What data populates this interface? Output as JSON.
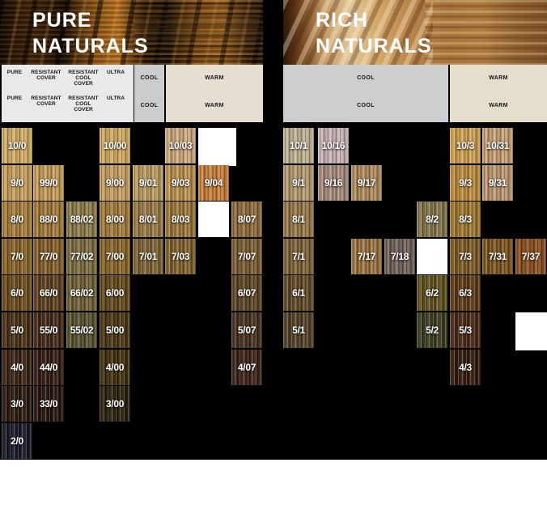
{
  "page": {
    "background": "#000000",
    "bottom_background": "#ffffff"
  },
  "sections": [
    {
      "name": "pure-naturals",
      "title": [
        "PURE",
        "NATURALS"
      ],
      "column_headers": [
        {
          "key": "pure",
          "lines": [
            "PURE"
          ]
        },
        {
          "key": "resistant-cover",
          "lines": [
            "RESISTANT",
            "COVER"
          ]
        },
        {
          "key": "resistant-cool-cover",
          "lines": [
            "RESISTANT",
            "COOL",
            "COVER"
          ]
        },
        {
          "key": "ultra",
          "lines": [
            "ULTRA"
          ]
        }
      ],
      "cool_label": "COOL",
      "warm_label": "WARM",
      "swatches": [
        {
          "code": "10/0",
          "row": 10,
          "col": 0,
          "color": "#d4ad66"
        },
        {
          "code": "10/00",
          "row": 10,
          "col": 3,
          "color": "#d2aa60"
        },
        {
          "code": "10/03",
          "row": 10,
          "col": 5,
          "color": "#cfa87d"
        },
        {
          "code": "",
          "row": 10,
          "col": 6,
          "color": "#ffffff",
          "blank": true,
          "large": true
        },
        {
          "code": "9/0",
          "row": 9,
          "col": 0,
          "color": "#c9a05c"
        },
        {
          "code": "99/0",
          "row": 9,
          "col": 1,
          "color": "#c59c58"
        },
        {
          "code": "9/00",
          "row": 9,
          "col": 3,
          "color": "#c89f60"
        },
        {
          "code": "9/01",
          "row": 9,
          "col": 4,
          "color": "#bb9c60"
        },
        {
          "code": "9/03",
          "row": 9,
          "col": 5,
          "color": "#bb914e"
        },
        {
          "code": "9/04",
          "row": 9,
          "col": 6,
          "color": "#c8803a"
        },
        {
          "code": "8/0",
          "row": 8,
          "col": 0,
          "color": "#a87e3c"
        },
        {
          "code": "88/0",
          "row": 8,
          "col": 1,
          "color": "#a2793a"
        },
        {
          "code": "88/02",
          "row": 8,
          "col": 2,
          "color": "#8c7c4a"
        },
        {
          "code": "8/00",
          "row": 8,
          "col": 3,
          "color": "#a57c3c"
        },
        {
          "code": "8/01",
          "row": 8,
          "col": 4,
          "color": "#9a7a44"
        },
        {
          "code": "8/03",
          "row": 8,
          "col": 5,
          "color": "#9d773a"
        },
        {
          "code": "",
          "row": 8,
          "col": 6,
          "color": "#ffffff",
          "blank": true
        },
        {
          "code": "8/07",
          "row": 8,
          "col": 7,
          "color": "#8e6c3c"
        },
        {
          "code": "7/0",
          "row": 7,
          "col": 0,
          "color": "#8a6428"
        },
        {
          "code": "77/0",
          "row": 7,
          "col": 1,
          "color": "#855f2a"
        },
        {
          "code": "77/02",
          "row": 7,
          "col": 2,
          "color": "#7c6c40"
        },
        {
          "code": "7/00",
          "row": 7,
          "col": 3,
          "color": "#8a6528"
        },
        {
          "code": "7/01",
          "row": 7,
          "col": 4,
          "color": "#7e6336"
        },
        {
          "code": "7/03",
          "row": 7,
          "col": 5,
          "color": "#81612e"
        },
        {
          "code": "7/07",
          "row": 7,
          "col": 7,
          "color": "#7b5d32"
        },
        {
          "code": "6/0",
          "row": 6,
          "col": 0,
          "color": "#6d4c1e"
        },
        {
          "code": "66/0",
          "row": 6,
          "col": 1,
          "color": "#5f4020"
        },
        {
          "code": "66/02",
          "row": 6,
          "col": 2,
          "color": "#6f6138"
        },
        {
          "code": "6/00",
          "row": 6,
          "col": 3,
          "color": "#65481c"
        },
        {
          "code": "6/07",
          "row": 6,
          "col": 7,
          "color": "#5f4526"
        },
        {
          "code": "5/0",
          "row": 5,
          "col": 0,
          "color": "#4a3017"
        },
        {
          "code": "55/0",
          "row": 5,
          "col": 1,
          "color": "#46291a"
        },
        {
          "code": "55/02",
          "row": 5,
          "col": 2,
          "color": "#575131"
        },
        {
          "code": "5/00",
          "row": 5,
          "col": 3,
          "color": "#4a3514"
        },
        {
          "code": "5/07",
          "row": 5,
          "col": 7,
          "color": "#47311f"
        },
        {
          "code": "4/0",
          "row": 4,
          "col": 0,
          "color": "#3a2514"
        },
        {
          "code": "44/0",
          "row": 4,
          "col": 1,
          "color": "#331d12"
        },
        {
          "code": "4/00",
          "row": 4,
          "col": 3,
          "color": "#413010"
        },
        {
          "code": "4/07",
          "row": 4,
          "col": 7,
          "color": "#3c2417"
        },
        {
          "code": "3/0",
          "row": 3,
          "col": 0,
          "color": "#2a1b10"
        },
        {
          "code": "33/0",
          "row": 3,
          "col": 1,
          "color": "#27150f"
        },
        {
          "code": "3/00",
          "row": 3,
          "col": 3,
          "color": "#2b200e"
        },
        {
          "code": "2/0",
          "row": 2,
          "col": 0,
          "color": "#181a28"
        }
      ]
    },
    {
      "name": "rich-naturals",
      "title": [
        "RICH",
        "NATURALS"
      ],
      "cool_label": "COOL",
      "warm_label": "WARM",
      "swatches": [
        {
          "code": "10/1",
          "row": 10,
          "col": 0,
          "color": "#bfb292"
        },
        {
          "code": "10/16",
          "row": 10,
          "col": 1,
          "color": "#c9b3b4"
        },
        {
          "code": "10/3",
          "row": 10,
          "col": 5,
          "color": "#cfa050"
        },
        {
          "code": "10/31",
          "row": 10,
          "col": 6,
          "color": "#c7a075"
        },
        {
          "code": "9/1",
          "row": 9,
          "col": 0,
          "color": "#b39a6e"
        },
        {
          "code": "9/16",
          "row": 9,
          "col": 1,
          "color": "#a78a7a"
        },
        {
          "code": "9/17",
          "row": 9,
          "col": 2,
          "color": "#af8c5c"
        },
        {
          "code": "9/3",
          "row": 9,
          "col": 5,
          "color": "#bd8c3d"
        },
        {
          "code": "9/31",
          "row": 9,
          "col": 6,
          "color": "#bd9871"
        },
        {
          "code": "8/1",
          "row": 8,
          "col": 0,
          "color": "#977748"
        },
        {
          "code": "8/2",
          "row": 8,
          "col": 4,
          "color": "#83754a"
        },
        {
          "code": "8/3",
          "row": 8,
          "col": 5,
          "color": "#a1772f"
        },
        {
          "code": "7/1",
          "row": 7,
          "col": 0,
          "color": "#7e6137"
        },
        {
          "code": "7/17",
          "row": 7,
          "col": 2,
          "color": "#9b7440"
        },
        {
          "code": "7/18",
          "row": 7,
          "col": 3,
          "color": "#6e6158"
        },
        {
          "code": "",
          "row": 7,
          "col": 4,
          "color": "#ffffff",
          "blank": true
        },
        {
          "code": "7/3",
          "row": 7,
          "col": 5,
          "color": "#7f5a24"
        },
        {
          "code": "7/31",
          "row": 7,
          "col": 6,
          "color": "#7e5520"
        },
        {
          "code": "7/37",
          "row": 7,
          "col": 7,
          "color": "#8a4f1e"
        },
        {
          "code": "6/1",
          "row": 6,
          "col": 0,
          "color": "#614a28"
        },
        {
          "code": "6/2",
          "row": 6,
          "col": 4,
          "color": "#5f511f"
        },
        {
          "code": "6/3",
          "row": 6,
          "col": 5,
          "color": "#5e3c16"
        },
        {
          "code": "5/1",
          "row": 5,
          "col": 0,
          "color": "#554026"
        },
        {
          "code": "5/2",
          "row": 5,
          "col": 4,
          "color": "#3d3c22"
        },
        {
          "code": "5/3",
          "row": 5,
          "col": 5,
          "color": "#4a2a1a"
        },
        {
          "code": "",
          "row": 5,
          "col": 7,
          "color": "#ffffff",
          "blank": true,
          "large": true
        },
        {
          "code": "4/3",
          "row": 4,
          "col": 5,
          "color": "#331d0e"
        }
      ]
    }
  ]
}
